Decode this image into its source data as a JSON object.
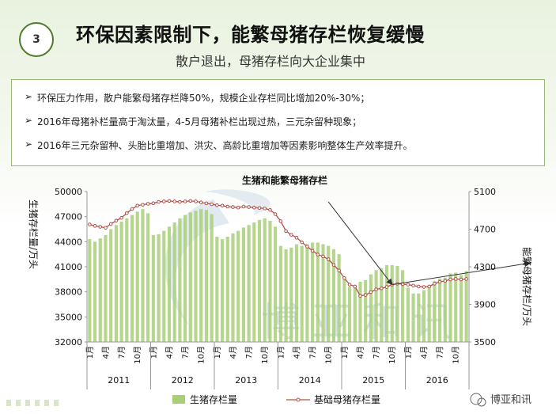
{
  "header": {
    "badge": "3",
    "title": "环保因素限制下，能繁母猪存栏恢复缓慢",
    "subtitle": "散户退出，母猪存栏向大企业集中"
  },
  "bullets": [
    "环保压力作用，散户能繁母猪存栏降50%，规模企业存栏同比增加20%-30%；",
    "2016年母猪补栏量高于淘汰量，4-5月母猪补栏出现过热，三元杂留种现象；",
    "2016年三元杂留种、头胎比重增加、洪灾、高龄比重增加等因素影响整体生产效率提升。"
  ],
  "watermark": "博亚和讯",
  "logo_text": "博亚和讯",
  "chart_data": {
    "type": "bar",
    "title": "生猪和能繁母猪存栏",
    "ylabel": "生猪存栏量/万头",
    "y2label": "能繁母猪存栏/万头",
    "ylim": [
      32000,
      50000
    ],
    "y2lim": [
      3500,
      5100
    ],
    "yticks": [
      32000,
      35000,
      38000,
      41000,
      44000,
      47000,
      50000
    ],
    "y2ticks": [
      3500,
      3900,
      4300,
      4700,
      5100
    ],
    "month_ticks": [
      "1月",
      "4月",
      "7月",
      "10月"
    ],
    "years": [
      "2011",
      "2012",
      "2013",
      "2014",
      "2015",
      "2016"
    ],
    "legend": [
      "生猪存栏量",
      "基础母猪存栏量"
    ],
    "colors": {
      "bar": "#a8cf78",
      "line": "#b0504a",
      "arrow": "#333333"
    },
    "series": [
      {
        "name": "生猪存栏量",
        "axis": "left",
        "values": [
          44300,
          44000,
          44400,
          44800,
          45500,
          46000,
          46400,
          46800,
          47200,
          47600,
          47900,
          47400,
          44800,
          44900,
          45300,
          45800,
          46300,
          46800,
          47200,
          47500,
          47700,
          47900,
          47800,
          47300,
          44600,
          44300,
          44600,
          45000,
          45300,
          45700,
          46000,
          46300,
          46600,
          46800,
          46500,
          45800,
          43500,
          43100,
          43300,
          43700,
          43500,
          43700,
          43900,
          43900,
          43700,
          43500,
          43100,
          42500,
          39500,
          38600,
          38800,
          39200,
          39400,
          40100,
          40600,
          40800,
          41200,
          41200,
          41100,
          40600,
          38500,
          37800,
          37800,
          38200,
          38800,
          39300,
          39600,
          39700,
          40200,
          40300,
          40000,
          40500
        ]
      },
      {
        "name": "基础母猪存栏量",
        "axis": "right",
        "values": [
          4750,
          4735,
          4725,
          4715,
          4755,
          4790,
          4820,
          4870,
          4915,
          4950,
          4960,
          4970,
          4975,
          4990,
          4995,
          5000,
          4995,
          4990,
          4995,
          5000,
          4995,
          4985,
          4975,
          4965,
          4955,
          4950,
          4940,
          4935,
          4930,
          4940,
          4935,
          4930,
          4925,
          4920,
          4905,
          4860,
          4785,
          4680,
          4640,
          4610,
          4560,
          4515,
          4470,
          4430,
          4410,
          4380,
          4320,
          4260,
          4180,
          4110,
          4090,
          3990,
          4000,
          4030,
          4060,
          4070,
          4085,
          4110,
          4120,
          4115,
          4110,
          4100,
          4090,
          4085,
          4090,
          4120,
          4140,
          4150,
          4165,
          4170,
          4165,
          4170
        ]
      }
    ],
    "annotations": [
      {
        "type": "arrow",
        "from": [
          45,
          4990
        ],
        "to": [
          57,
          4110
        ]
      },
      {
        "type": "arrow",
        "from": [
          57,
          4110
        ],
        "to": [
          83,
          4340
        ]
      }
    ]
  }
}
